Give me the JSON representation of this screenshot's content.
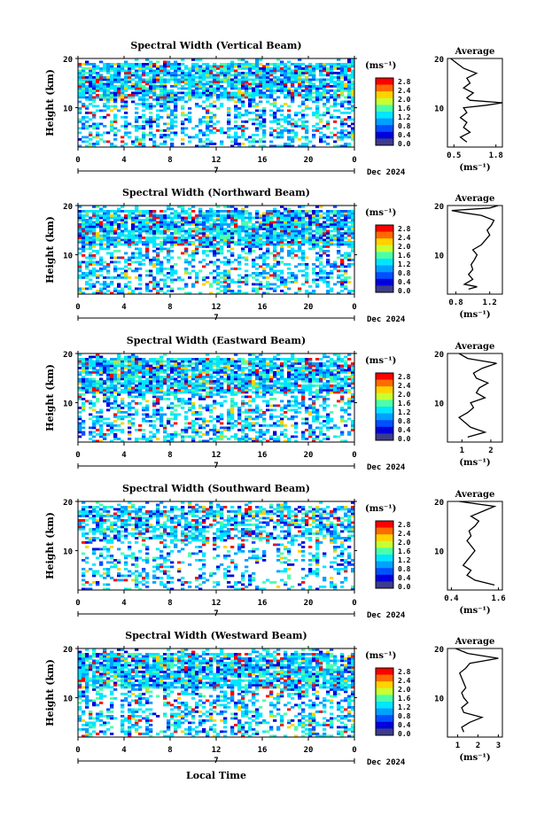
{
  "figure": {
    "date_label": "Dec 2024",
    "xlabel": "Local Time",
    "day_label": "7"
  },
  "colorbar": {
    "unit": "(ms⁻¹)",
    "ticks": [
      "2.8",
      "2.4",
      "2.0",
      "1.6",
      "1.2",
      "0.8",
      "0.4",
      "0.0"
    ],
    "colors": [
      "#ff0000",
      "#ff6a00",
      "#ffd200",
      "#c8ff32",
      "#4bffaa",
      "#00e6ff",
      "#00a0ff",
      "#0050ff",
      "#0000dc",
      "#3c3c8c"
    ]
  },
  "chart_data": [
    {
      "type": "heatmap",
      "title": "Spectral Width (Vertical Beam)",
      "ylabel": "Height (km)",
      "xlabel": "Local Time",
      "xlim": [
        0,
        24
      ],
      "ylim": [
        2,
        20
      ],
      "xticks": [
        "0",
        "4",
        "8",
        "12",
        "16",
        "20",
        "0"
      ],
      "yticks": [
        "20",
        "10"
      ],
      "zlim": [
        0,
        3.0
      ],
      "zunit": "ms⁻¹",
      "profile": {
        "title": "Average",
        "xlabel": "(ms⁻¹)",
        "xlim": [
          0.3,
          2.0
        ],
        "xticks": [
          "0.5",
          "1.8"
        ],
        "yticks": [
          "20",
          "10"
        ],
        "height": [
          3,
          4,
          5,
          6,
          7,
          8,
          9,
          10,
          10.5,
          11,
          11.5,
          12,
          13,
          14,
          15,
          16,
          17,
          18,
          19,
          20
        ],
        "value": [
          0.9,
          0.7,
          1.0,
          0.8,
          0.9,
          0.7,
          0.9,
          0.8,
          1.5,
          2.0,
          1.0,
          0.9,
          1.1,
          0.8,
          1.0,
          0.9,
          1.2,
          0.8,
          0.6,
          0.4
        ]
      }
    },
    {
      "type": "heatmap",
      "title": "Spectral Width (Northward Beam)",
      "ylabel": "Height (km)",
      "xlabel": "Local Time",
      "xlim": [
        0,
        24
      ],
      "ylim": [
        2,
        20
      ],
      "xticks": [
        "0",
        "4",
        "8",
        "12",
        "16",
        "20",
        "0"
      ],
      "yticks": [
        "20",
        "10"
      ],
      "zlim": [
        0,
        3.0
      ],
      "zunit": "ms⁻¹",
      "profile": {
        "title": "Average",
        "xlabel": "(ms⁻¹)",
        "xlim": [
          0.7,
          1.35
        ],
        "xticks": [
          "0.8",
          "1.2"
        ],
        "yticks": [
          "20",
          "10"
        ],
        "height": [
          3,
          3.5,
          4,
          5,
          6,
          7,
          8,
          9,
          10,
          11,
          12,
          13,
          14,
          15,
          16,
          17,
          18,
          18.5,
          19,
          19.5,
          20
        ],
        "value": [
          0.95,
          1.05,
          0.9,
          1.0,
          0.95,
          1.0,
          0.98,
          1.02,
          1.05,
          1.0,
          1.1,
          1.15,
          1.2,
          1.17,
          1.22,
          1.25,
          1.1,
          0.9,
          0.75,
          1.2,
          1.3
        ]
      }
    },
    {
      "type": "heatmap",
      "title": "Spectral Width (Eastward Beam)",
      "ylabel": "Height (km)",
      "xlabel": "Local Time",
      "xlim": [
        0,
        24
      ],
      "ylim": [
        2,
        20
      ],
      "xticks": [
        "0",
        "4",
        "8",
        "12",
        "16",
        "20",
        "0"
      ],
      "yticks": [
        "20",
        "10"
      ],
      "zlim": [
        0,
        3.0
      ],
      "zunit": "ms⁻¹",
      "profile": {
        "title": "Average",
        "xlabel": "(ms⁻¹)",
        "xlim": [
          0.5,
          2.4
        ],
        "xticks": [
          "1",
          "2"
        ],
        "yticks": [
          "20",
          "10"
        ],
        "height": [
          3,
          4,
          5,
          6,
          7,
          8,
          9,
          10,
          11,
          12,
          13,
          14,
          15,
          16,
          17,
          18,
          19,
          20
        ],
        "value": [
          1.2,
          1.8,
          1.3,
          1.1,
          0.9,
          1.2,
          1.4,
          1.3,
          1.8,
          1.5,
          1.6,
          1.9,
          1.5,
          1.4,
          1.7,
          2.2,
          1.2,
          0.9
        ]
      }
    },
    {
      "type": "heatmap",
      "title": "Spectral Width (Southward Beam)",
      "ylabel": "Height (km)",
      "xlabel": "Local Time",
      "xlim": [
        0,
        24
      ],
      "ylim": [
        2,
        20
      ],
      "xticks": [
        "0",
        "4",
        "8",
        "12",
        "16",
        "20",
        "0"
      ],
      "yticks": [
        "20",
        "10"
      ],
      "zlim": [
        0,
        3.0
      ],
      "zunit": "ms⁻¹",
      "profile": {
        "title": "Average",
        "xlabel": "(ms⁻¹)",
        "xlim": [
          0.3,
          1.7
        ],
        "xticks": [
          "0.4",
          "1.6"
        ],
        "yticks": [
          "20",
          "10"
        ],
        "height": [
          3,
          4,
          5,
          6,
          7,
          8,
          9,
          10,
          11,
          12,
          13,
          14,
          15,
          16,
          17,
          18,
          19,
          20
        ],
        "value": [
          1.5,
          1.0,
          0.8,
          0.9,
          0.7,
          0.8,
          0.9,
          1.0,
          0.9,
          0.8,
          0.9,
          0.85,
          1.0,
          1.1,
          0.9,
          1.2,
          1.5,
          0.6
        ]
      }
    },
    {
      "type": "heatmap",
      "title": "Spectral Width (Westward Beam)",
      "ylabel": "Height (km)",
      "xlabel": "Local Time",
      "xlim": [
        0,
        24
      ],
      "ylim": [
        2,
        20
      ],
      "xticks": [
        "0",
        "4",
        "8",
        "12",
        "16",
        "20",
        "0"
      ],
      "yticks": [
        "20",
        "10"
      ],
      "zlim": [
        0,
        3.0
      ],
      "zunit": "ms⁻¹",
      "profile": {
        "title": "Average",
        "xlabel": "(ms⁻¹)",
        "xlim": [
          0.5,
          3.2
        ],
        "xticks": [
          "1",
          "2",
          "3"
        ],
        "yticks": [
          "20",
          "10"
        ],
        "height": [
          3,
          4,
          5,
          6,
          7,
          8,
          9,
          10,
          11,
          12,
          13,
          14,
          15,
          16,
          17,
          18,
          19,
          20
        ],
        "value": [
          1.3,
          1.2,
          1.6,
          2.2,
          1.3,
          1.2,
          1.5,
          1.3,
          1.2,
          1.4,
          1.3,
          1.2,
          1.1,
          1.4,
          1.6,
          3.0,
          1.5,
          0.9
        ]
      }
    }
  ]
}
